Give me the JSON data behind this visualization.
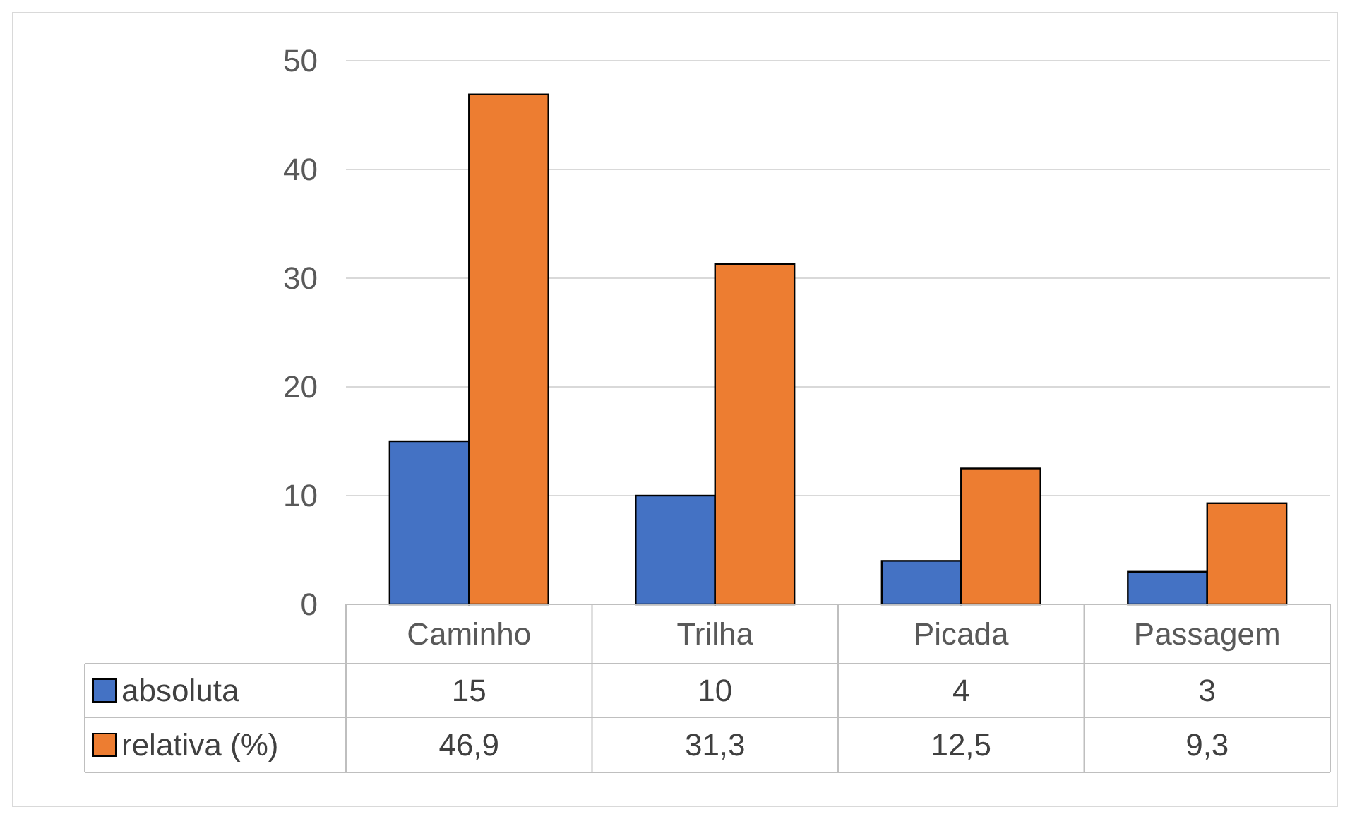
{
  "chart_data": {
    "type": "bar",
    "categories": [
      "Caminho",
      "Trilha",
      "Picada",
      "Passagem"
    ],
    "series": [
      {
        "name": "absoluta",
        "color": "#4472c4",
        "values": [
          15,
          10,
          4,
          3
        ],
        "value_labels": [
          "15",
          "10",
          "4",
          "3"
        ]
      },
      {
        "name": "relativa (%)",
        "color": "#ed7d31",
        "values": [
          46.9,
          31.3,
          12.5,
          9.3
        ],
        "value_labels": [
          "46,9",
          "31,3",
          "12,5",
          "9,3"
        ]
      }
    ],
    "ylim": [
      0,
      50
    ],
    "yticks": [
      0,
      10,
      20,
      30,
      40,
      50
    ],
    "grid": "y",
    "legend": "bottom"
  }
}
